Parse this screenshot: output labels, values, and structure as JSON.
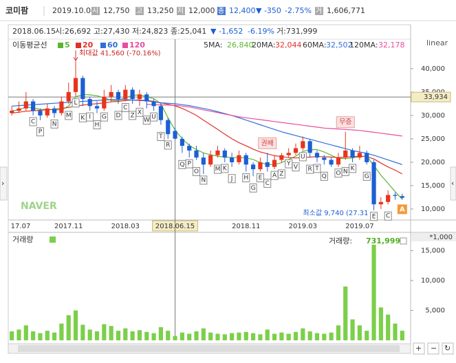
{
  "header": {
    "name": "코미팜",
    "date": "2019.10.04",
    "open_tag": "시",
    "open": "12,750",
    "high_tag": "고",
    "high": "13,250",
    "low_tag": "저",
    "low": "12,000",
    "close_tag": "종",
    "close": "12,400",
    "change": "▼ -350",
    "change_pct": "-2.75%",
    "volume_tag": "거",
    "volume": "1,606,771"
  },
  "info": {
    "date": "2018.06.15",
    "open": "시:26,692",
    "high": "고:27,430",
    "low": "저:24,823",
    "close": "종:25,041",
    "change": "▼ -1,652",
    "change_pct": "-6.19%",
    "volume": "거:731,999"
  },
  "chart_data": {
    "type": "candlestick",
    "scale_label": "linear",
    "watermark": "NAVER",
    "categories": [
      null,
      "17.07",
      null,
      null,
      null,
      null,
      null,
      null,
      "2017.11",
      null,
      null,
      null,
      null,
      null,
      null,
      null,
      "2018.03",
      null,
      null,
      null,
      null,
      null,
      null,
      "2018.06.15",
      null,
      null,
      null,
      null,
      null,
      null,
      null,
      null,
      null,
      "2018.11",
      null,
      null,
      null,
      null,
      null,
      null,
      null,
      "2019.03",
      null,
      null,
      null,
      null,
      null,
      null,
      null,
      "2019.07",
      null,
      null,
      null,
      null,
      null,
      null
    ],
    "candles": {
      "up_color": "#e8341c",
      "down_color": "#1c5fd4",
      "open": [
        30500,
        31000,
        31500,
        33000,
        31000,
        30000,
        31500,
        30500,
        33000,
        35000,
        38000,
        33500,
        32000,
        31500,
        34000,
        35000,
        33500,
        35500,
        33500,
        34500,
        33000,
        32000,
        29000,
        26692,
        25000,
        23500,
        22500,
        21000,
        19500,
        21500,
        22500,
        21000,
        20000,
        21500,
        19500,
        18500,
        20000,
        19000,
        20500,
        21500,
        22000,
        23000,
        24500,
        22000,
        21000,
        20500,
        19500,
        21000,
        22500,
        21000,
        22000,
        20000,
        11000,
        11500,
        13000,
        12750
      ],
      "high": [
        32000,
        33000,
        35000,
        33500,
        31500,
        32500,
        32000,
        34000,
        37000,
        41560,
        38500,
        34000,
        33000,
        35500,
        36500,
        35500,
        36500,
        36000,
        35500,
        35000,
        33500,
        32500,
        29500,
        27430,
        25500,
        24000,
        23500,
        22000,
        22500,
        23500,
        23000,
        22000,
        22500,
        22000,
        20000,
        21000,
        22000,
        21500,
        22000,
        23000,
        24000,
        25500,
        25000,
        22500,
        21500,
        21000,
        22000,
        26500,
        23000,
        23500,
        22500,
        20500,
        12500,
        14000,
        13500,
        13250
      ],
      "low": [
        30000,
        30500,
        31000,
        30000,
        29000,
        29500,
        29500,
        30000,
        32500,
        34000,
        32000,
        31000,
        30500,
        31000,
        33000,
        32500,
        33000,
        32500,
        32000,
        31500,
        31000,
        28000,
        25000,
        24823,
        22000,
        21000,
        20500,
        17500,
        19000,
        21000,
        20000,
        19000,
        19500,
        18000,
        17000,
        18000,
        18000,
        18500,
        20000,
        21000,
        21500,
        22500,
        21000,
        20000,
        19500,
        19000,
        19000,
        20500,
        20000,
        20500,
        19500,
        9740,
        10000,
        11000,
        12000,
        12000
      ],
      "close": [
        31000,
        31500,
        33000,
        31000,
        30000,
        31500,
        30500,
        33000,
        35000,
        38000,
        33500,
        32000,
        31500,
        34000,
        35000,
        33500,
        35500,
        33500,
        34500,
        33000,
        32000,
        29000,
        26000,
        25041,
        23500,
        22500,
        21000,
        19500,
        21500,
        22500,
        21000,
        20000,
        21500,
        19500,
        18500,
        20000,
        19000,
        20500,
        21500,
        22000,
        23000,
        24500,
        22000,
        21000,
        20500,
        19500,
        21000,
        22500,
        21000,
        22000,
        20000,
        11000,
        11500,
        13000,
        12800,
        12400
      ]
    },
    "ylim": [
      7650,
      46300
    ],
    "yticks": [
      {
        "value": 10000,
        "label": "10,000"
      },
      {
        "value": 15000,
        "label": "15,000"
      },
      {
        "value": 20000,
        "label": "20,000"
      },
      {
        "value": 25000,
        "label": "25,000"
      },
      {
        "value": 30000,
        "label": "30,000"
      },
      {
        "value": 35000,
        "label": "35,000"
      },
      {
        "value": 40000,
        "label": "40,000"
      }
    ],
    "ma_title": "이동평균선",
    "series": [
      {
        "name": "5",
        "label": "5MA:",
        "current": "26,840",
        "color": "#5cb531",
        "values": [
          31000,
          31200,
          31800,
          31600,
          31300,
          31300,
          31200,
          31200,
          32000,
          34000,
          34500,
          34400,
          34200,
          33800,
          33200,
          33200,
          33800,
          34300,
          34400,
          34000,
          33600,
          32500,
          29500,
          26840,
          25000,
          23600,
          22700,
          22000,
          21600,
          21300,
          21100,
          21000,
          21000,
          20900,
          20600,
          19900,
          19500,
          19500,
          19900,
          20600,
          21300,
          22300,
          22700,
          22700,
          22200,
          21500,
          20800,
          20800,
          20900,
          21200,
          21300,
          19300,
          17200,
          15500,
          13700,
          12100
        ]
      },
      {
        "name": "20",
        "label": "20MA:",
        "current": "32,044",
        "color": "#e0302a",
        "values": [
          30500,
          30700,
          30900,
          31000,
          31100,
          31200,
          31300,
          31500,
          31700,
          32000,
          32200,
          32400,
          32500,
          32700,
          32900,
          33000,
          33200,
          33300,
          33300,
          33200,
          33000,
          32700,
          32400,
          32044,
          31500,
          30800,
          30000,
          29000,
          28000,
          27000,
          26000,
          25000,
          24200,
          23500,
          22800,
          22200,
          21800,
          21400,
          21200,
          21000,
          20900,
          21000,
          21100,
          21200,
          21200,
          21100,
          21000,
          21100,
          21200,
          21300,
          21200,
          20700,
          19800,
          19000,
          18300,
          17500
        ]
      },
      {
        "name": "60",
        "label": "60MA:",
        "current": "32,502",
        "color": "#2f6fd8",
        "values": [
          32000,
          32100,
          32200,
          32300,
          32400,
          32500,
          32600,
          32700,
          32800,
          32900,
          33000,
          33100,
          33200,
          33300,
          33400,
          33400,
          33400,
          33300,
          33200,
          33100,
          32900,
          32700,
          32600,
          32502,
          32300,
          32100,
          31800,
          31500,
          31200,
          30800,
          30400,
          30000,
          29500,
          29000,
          28500,
          28000,
          27500,
          27000,
          26500,
          26100,
          25700,
          25300,
          24900,
          24500,
          24100,
          23700,
          23300,
          22900,
          22500,
          22200,
          21900,
          21500,
          21000,
          20500,
          20000,
          19500
        ]
      },
      {
        "name": "120",
        "label": "120MA:",
        "current": "32,178",
        "color": "#e84c9c",
        "values": [
          null,
          null,
          null,
          null,
          null,
          null,
          null,
          null,
          null,
          null,
          null,
          null,
          null,
          null,
          null,
          null,
          null,
          null,
          null,
          32400,
          32300,
          32250,
          32200,
          32178,
          32000,
          31800,
          31500,
          31200,
          30900,
          30600,
          30300,
          30000,
          29700,
          29500,
          29300,
          29100,
          28900,
          28700,
          28500,
          28300,
          28100,
          27900,
          27700,
          27500,
          27300,
          27200,
          27100,
          27000,
          26900,
          26800,
          26600,
          26400,
          26200,
          26000,
          25800,
          25600
        ]
      }
    ],
    "crosshair": {
      "price": 33934,
      "price_label": "33,934"
    },
    "max_label": "최대값 41,560 (-70.16%)",
    "min_label": "최소값 9,740 (27.31",
    "events": [
      {
        "text": "권배",
        "candle": 36
      },
      {
        "text": "무증",
        "candle": 47
      }
    ],
    "badge": {
      "text": "A",
      "candle": 55
    },
    "markers": [
      {
        "text": "C",
        "candle": 3
      },
      {
        "text": "P",
        "candle": 4
      },
      {
        "text": "N",
        "candle": 6
      },
      {
        "text": "M",
        "candle": 8
      },
      {
        "text": "L",
        "candle": 9
      },
      {
        "text": "K",
        "candle": 10
      },
      {
        "text": "I",
        "candle": 11
      },
      {
        "text": "H",
        "candle": 12
      },
      {
        "text": "G",
        "candle": 13
      },
      {
        "text": "D",
        "candle": 15
      },
      {
        "text": "C",
        "candle": 16
      },
      {
        "text": "Z",
        "candle": 17
      },
      {
        "text": "X",
        "candle": 18
      },
      {
        "text": "W",
        "candle": 19
      },
      {
        "text": "U",
        "candle": 20
      },
      {
        "text": "T",
        "candle": 21
      },
      {
        "text": "R",
        "candle": 22
      },
      {
        "text": "Q",
        "candle": 24
      },
      {
        "text": "P",
        "candle": 25
      },
      {
        "text": "O",
        "candle": 26
      },
      {
        "text": "N",
        "candle": 27
      },
      {
        "text": "M",
        "candle": 29
      },
      {
        "text": "K",
        "candle": 30
      },
      {
        "text": "J",
        "candle": 31
      },
      {
        "text": "H",
        "candle": 33
      },
      {
        "text": "G",
        "candle": 34
      },
      {
        "text": "E",
        "candle": 35
      },
      {
        "text": "C",
        "candle": 36
      },
      {
        "text": "A",
        "candle": 37
      },
      {
        "text": "Z",
        "candle": 38
      },
      {
        "text": "Y",
        "candle": 39
      },
      {
        "text": "V",
        "candle": 40
      },
      {
        "text": "U",
        "candle": 41
      },
      {
        "text": "R",
        "candle": 42
      },
      {
        "text": "T",
        "candle": 43
      },
      {
        "text": "Q",
        "candle": 44
      },
      {
        "text": "O",
        "candle": 46
      },
      {
        "text": "N",
        "candle": 47
      },
      {
        "text": "K",
        "candle": 48
      },
      {
        "text": "G",
        "candle": 50
      },
      {
        "text": "E",
        "candle": 51
      },
      {
        "text": "C",
        "candle": 53
      }
    ],
    "volume": {
      "title": "거래량",
      "color": "#7ccf4a",
      "unit": "*1,000",
      "current_label": "거래량:",
      "current": "731,999",
      "values": [
        1500,
        1800,
        2500,
        1500,
        1200,
        1600,
        1300,
        2800,
        4200,
        5000,
        2600,
        1800,
        1500,
        2700,
        2400,
        1600,
        2000,
        1500,
        1700,
        1400,
        1200,
        2200,
        1600,
        731.999,
        1300,
        1100,
        1500,
        2000,
        1300,
        1100,
        1000,
        1200,
        1300,
        1400,
        1200,
        1000,
        1800,
        1100,
        1300,
        1100,
        1400,
        2000,
        1500,
        1200,
        1100,
        1300,
        2500,
        9000,
        3500,
        2500,
        1600,
        16000,
        5500,
        4300,
        2800,
        1606.771
      ],
      "ylim": [
        0,
        16100
      ],
      "yticks": [
        {
          "value": 5000,
          "label": "5,000"
        },
        {
          "value": 10000,
          "label": "10,000"
        },
        {
          "value": 15000,
          "label": "15,000"
        }
      ]
    }
  }
}
